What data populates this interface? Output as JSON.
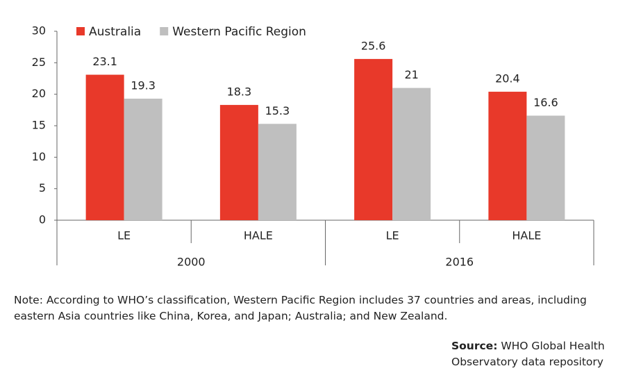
{
  "chart_data": {
    "type": "grouped-bar",
    "categories": [
      "LE",
      "HALE",
      "LE",
      "HALE"
    ],
    "group_labels": [
      "2000",
      "2016"
    ],
    "series": [
      {
        "name": "Australia",
        "color": "#e8392a",
        "values": [
          23.1,
          18.3,
          25.6,
          20.4
        ]
      },
      {
        "name": "Western Pacific Region",
        "color": "#bfbfbf",
        "values": [
          19.3,
          15.3,
          21,
          16.6
        ]
      }
    ],
    "ylim": [
      0,
      30
    ],
    "yticks": [
      0,
      5,
      10,
      15,
      20,
      25,
      30
    ],
    "legend": "top-left"
  },
  "note": "Note: According to WHO’s classification, Western Pacific Region includes 37 countries and areas, including eastern Asia countries like China, Korea, and Japan; Australia; and New Zealand.",
  "source": {
    "label": "Source:",
    "text": "WHO Global Health Observatory data repository"
  }
}
